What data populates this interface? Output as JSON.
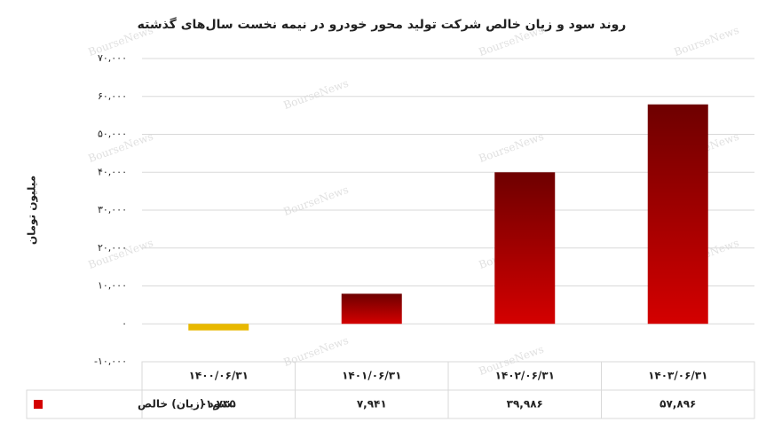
{
  "chart_data": {
    "type": "bar",
    "title": "روند سود و زیان خالص شرکت تولید محور خودرو در نیمه نخست سال‌های گذشته",
    "y_label": "میلیون تومان",
    "watermark": "BourseNews",
    "categories": [
      "۱۴۰۰/۰۶/۳۱",
      "۱۴۰۱/۰۶/۳۱",
      "۱۴۰۲/۰۶/۳۱",
      "۱۴۰۳/۰۶/۳۱"
    ],
    "series": [
      {
        "name": "سود (زیان) خالص",
        "color": "#d40000",
        "gradient_top": "#6e0000",
        "negative_color": "#e8b800",
        "values": [
          -1735,
          7941,
          39986,
          57896
        ],
        "value_labels": [
          "-۱,۷۳۵",
          "۷,۹۴۱",
          "۳۹,۹۸۶",
          "۵۷,۸۹۶"
        ]
      }
    ],
    "ylim": [
      -10000,
      70000
    ],
    "yticks": [
      {
        "value": -10000,
        "label": "-۱۰,۰۰۰"
      },
      {
        "value": 0,
        "label": "۰"
      },
      {
        "value": 10000,
        "label": "۱۰,۰۰۰"
      },
      {
        "value": 20000,
        "label": "۲۰,۰۰۰"
      },
      {
        "value": 30000,
        "label": "۳۰,۰۰۰"
      },
      {
        "value": 40000,
        "label": "۴۰,۰۰۰"
      },
      {
        "value": 50000,
        "label": "۵۰,۰۰۰"
      },
      {
        "value": 60000,
        "label": "۶۰,۰۰۰"
      },
      {
        "value": 70000,
        "label": "۷۰,۰۰۰"
      }
    ],
    "grid": true
  }
}
